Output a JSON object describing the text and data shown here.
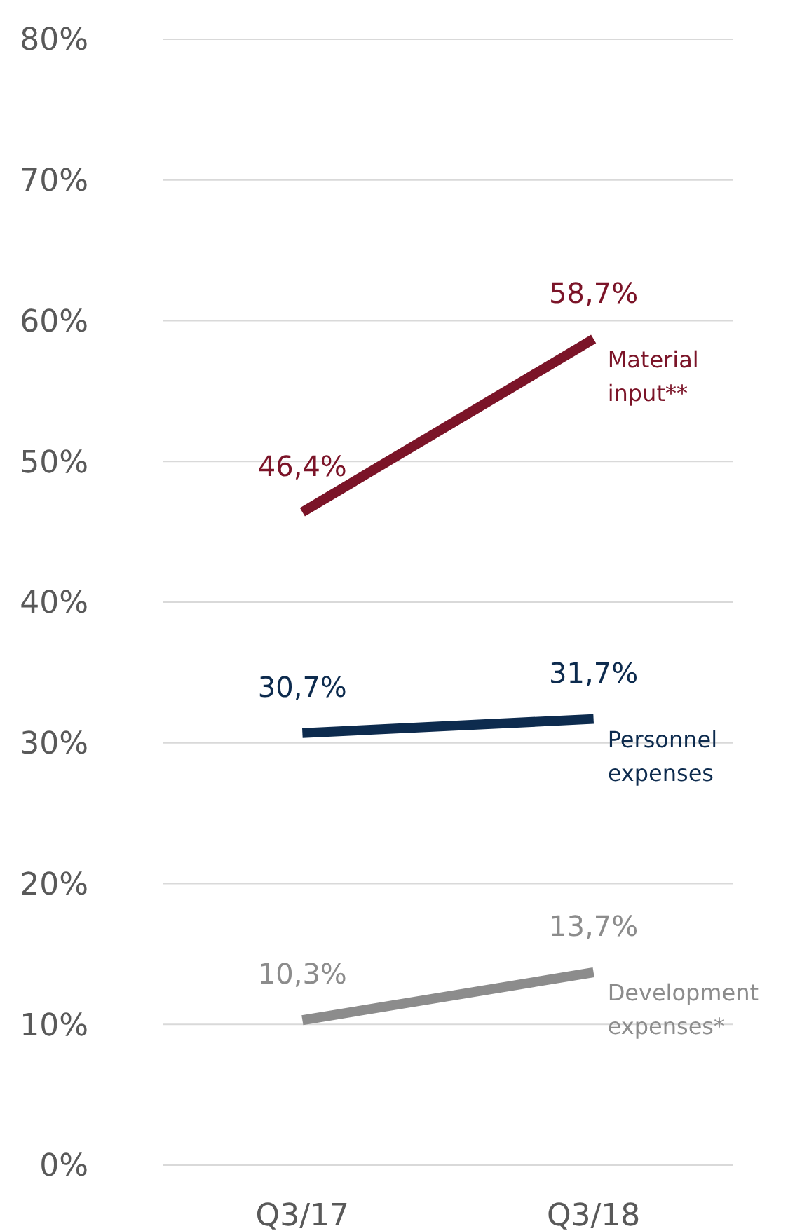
{
  "chart_data": {
    "type": "line",
    "categories": [
      "Q3/17",
      "Q3/18"
    ],
    "series": [
      {
        "name": "Material input**",
        "color": "#7b1428",
        "values": [
          46.4,
          58.7
        ],
        "value_labels": [
          "46,4%",
          "58,7%"
        ]
      },
      {
        "name": "Personnel expenses",
        "color": "#0d2b4e",
        "values": [
          30.7,
          31.7
        ],
        "value_labels": [
          "30,7%",
          "31,7%"
        ]
      },
      {
        "name": "Development expenses*",
        "color": "#8c8c8c",
        "values": [
          10.3,
          13.7
        ],
        "value_labels": [
          "10,3%",
          "13,7%"
        ]
      }
    ],
    "ylim": [
      0,
      80
    ],
    "yticks": [
      {
        "value": 0,
        "label": "0%"
      },
      {
        "value": 10,
        "label": "10%"
      },
      {
        "value": 20,
        "label": "20%"
      },
      {
        "value": 30,
        "label": "30%"
      },
      {
        "value": 40,
        "label": "40%"
      },
      {
        "value": 50,
        "label": "50%"
      },
      {
        "value": 60,
        "label": "60%"
      },
      {
        "value": 70,
        "label": "70%"
      },
      {
        "value": 80,
        "label": "80%"
      }
    ],
    "grid": "y",
    "marker": "none",
    "line_style": "solid"
  }
}
